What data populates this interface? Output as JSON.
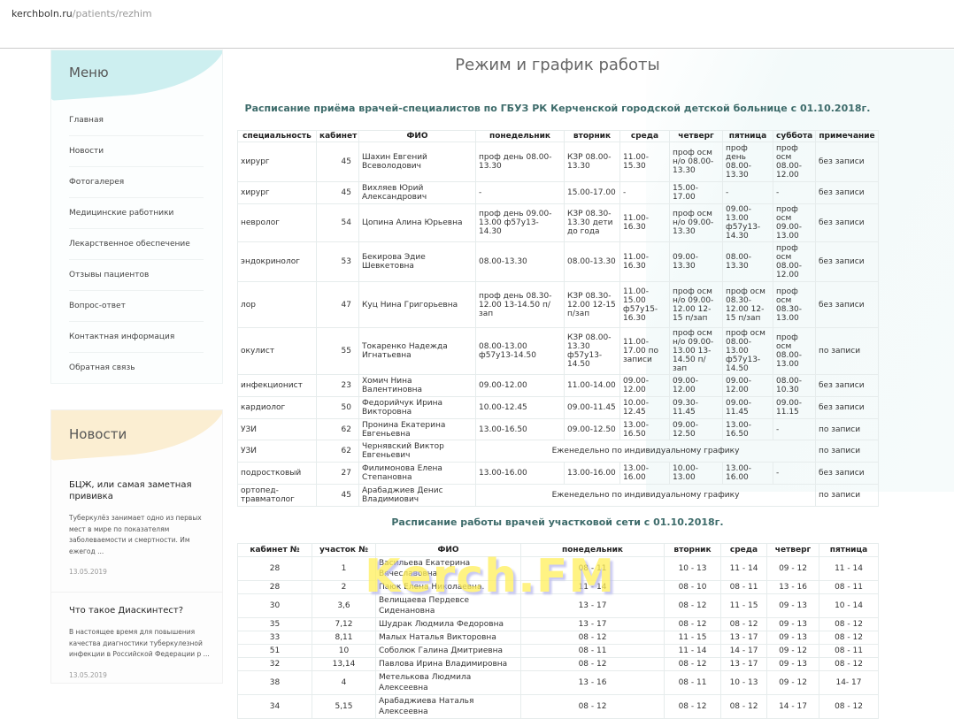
{
  "browser": {
    "domain": "kerchboln.ru",
    "path": "/patients/rezhim"
  },
  "sidebar": {
    "menu_title": "Меню",
    "items": [
      {
        "label": "Главная"
      },
      {
        "label": "Новости"
      },
      {
        "label": "Фотогалерея"
      },
      {
        "label": "Медицинские работники"
      },
      {
        "label": "Лекарственное обеспечение"
      },
      {
        "label": "Отзывы пациентов"
      },
      {
        "label": "Вопрос-ответ"
      },
      {
        "label": "Контактная информация"
      },
      {
        "label": "Обратная связь"
      }
    ],
    "news_title": "Новости",
    "news": [
      {
        "title": "БЦЖ, или самая заметная прививка",
        "excerpt": "Туберкулёз занимает одно из первых мест в мире по показателям заболеваемости и смертности. Им ежегод ...",
        "date": "13.05.2019"
      },
      {
        "title": "Что такое Диаскинтест?",
        "excerpt": "В настоящее время для повышения качества диагностики туберкулезной инфекции в Российской Федерации р ...",
        "date": "13.05.2019"
      }
    ]
  },
  "main": {
    "title": "Режим и график работы",
    "specialists": {
      "heading": "Расписание приёма врачей-специалистов по ГБУЗ РК Керченской городской детской больнице с 01.10.2018г.",
      "columns": [
        "специальность",
        "кабинет",
        "ФИО",
        "понедельник",
        "вторник",
        "среда",
        "четверг",
        "пятница",
        "суббота",
        "примечание"
      ],
      "rows": [
        [
          "хирург",
          "45",
          "Шахин Евгений Всеволодович",
          "проф день 08.00-13.30",
          "КЗР 08.00-13.30",
          "11.00-15.30",
          "проф осм н/о 08.00-13.30",
          "проф день 08.00-13.30",
          "проф осм 08.00-12.00",
          "без записи"
        ],
        [
          "хирург",
          "45",
          "Вихляев Юрий Александрович",
          "-",
          "15.00-17.00",
          "-",
          "15.00-17.00",
          "-",
          "-",
          "без записи"
        ],
        [
          "невролог",
          "54",
          "Цопина Алина Юрьевна",
          "проф день 09.00-13.00 ф57у13-14.30",
          "КЗР 08.30-13.30 дети до года",
          "11.00-16.30",
          "проф осм н/о 09.00-13.30",
          "09.00-13.00 ф57у13-14.30",
          "проф осм 09.00-13.00",
          "без записи"
        ],
        [
          "эндокринолог",
          "53",
          "Бекирова Эдие Шевкетовна",
          "08.00-13.30",
          "08.00-13.30",
          "11.00-16.30",
          "09.00-13.30",
          "08.00-13.30",
          "проф осм 08.00-12.00",
          "без записи"
        ],
        [
          "лор",
          "47",
          "Куц Нина Григорьевна",
          "проф день 08.30-12.00 13-14.50 п/зап",
          "КЗР 08.30-12.00 12-15 п/зап",
          "11.00-15.00 ф57у15-16.30",
          "проф осм н/о 09.00-12.00 12-15 п/зап",
          "проф осм 08.30-12.00 12-15 п/зап",
          "проф осм 08.30-13.00",
          "без записи"
        ],
        [
          "окулист",
          "55",
          "Токаренко Надежда Игнатьевна",
          "08.00-13.00 ф57у13-14.50",
          "КЗР 08.00-13.30 ф57у13-14.50",
          "11.00-17.00 по записи",
          "проф осм н/о 09.00-13.00 13-14.50 п/зап",
          "проф осм 08.00-13.00 ф57у13-14.50",
          "проф осм 08.00-13.00",
          "по записи"
        ],
        [
          "инфекционист",
          "23",
          "Хомич Нина Валентиновна",
          "09.00-12.00",
          "11.00-14.00",
          "09.00-12.00",
          "09.00-12.00",
          "09.00-12.00",
          "08.00-10.30",
          "без записи"
        ],
        [
          "кардиолог",
          "50",
          "Федорийчук Ирина Викторовна",
          "10.00-12.45",
          "09.00-11.45",
          "10.00-12.45",
          "09.30-11.45",
          "09.00-11.45",
          "09.00-11.15",
          "без записи"
        ],
        [
          "УЗИ",
          "62",
          "Пронина Екатерина Евгеньевна",
          "13.00-16.50",
          "09.00-12.50",
          "13.00-16.50",
          "09.00-12.50",
          "13.00-16.50",
          "-",
          "по записи"
        ],
        [
          "УЗИ",
          "62",
          "Чернявский Виктор Евгеньевич",
          "Еженедельно по индивидуальному графику",
          "по записи"
        ],
        [
          "подростковый",
          "27",
          "Филимонова Елена Степановна",
          "13.00-16.00",
          "13.00-16.00",
          "13.00-16.00",
          "10.00-13.00",
          "13.00-16.00",
          "-",
          "без записи"
        ],
        [
          "ортопед-травматолог",
          "45",
          "Арабаджиев Денис Владимиович",
          "Еженедельно по индивидуальному графику",
          "по записи"
        ]
      ]
    },
    "district": {
      "heading": "Расписание работы врачей участковой сети с 01.10.2018г.",
      "columns": [
        "кабинет №",
        "участок №",
        "ФИО",
        "понедельник",
        "вторник",
        "среда",
        "четверг",
        "пятница"
      ],
      "rows": [
        [
          "28",
          "1",
          "Васильева Екатерина Вячеславовна",
          "08 - 11",
          "10 - 13",
          "11 - 14",
          "09 - 12",
          "11 - 14"
        ],
        [
          "28",
          "2",
          "Паюк Елена Николаевна.",
          "11 - 14",
          "08 - 10",
          "08 - 11",
          "13 - 16",
          "08 - 11"
        ],
        [
          "30",
          "3,6",
          "Велищаева Пердевсе Сиденановна",
          "13 - 17",
          "08 - 12",
          "11 - 15",
          "09 - 13",
          "10 - 14"
        ],
        [
          "35",
          "7,12",
          "Шудрак Людмила Федоровна",
          "13 - 17",
          "08 - 12",
          "08 - 12",
          "09 - 13",
          "08 - 12"
        ],
        [
          "33",
          "8,11",
          "Малых Наталья Викторовна",
          "08 - 12",
          "11 - 15",
          "13 - 17",
          "09 - 13",
          "08 - 12"
        ],
        [
          "51",
          "10",
          "Соболюк Галина Дмитриевна",
          "08 - 11",
          "11 - 14",
          "14 - 17",
          "09 - 12",
          "08 - 11"
        ],
        [
          "32",
          "13,14",
          "Павлова Ирина Владимировна",
          "08 - 12",
          "08 - 12",
          "13 - 17",
          "09 - 13",
          "08 - 12"
        ],
        [
          "38",
          "4",
          "Метелькова Людмила Алексеевна",
          "13 - 16",
          "08 - 11",
          "10 - 13",
          "09 - 12",
          "14- 17"
        ],
        [
          "34",
          "5,15",
          "Арабаджиева Наталья Алексеевна",
          "08 - 12",
          "08 - 12",
          "08 - 12",
          "14 - 17",
          "08 - 12"
        ]
      ]
    }
  },
  "watermark": "Kerch.FM"
}
